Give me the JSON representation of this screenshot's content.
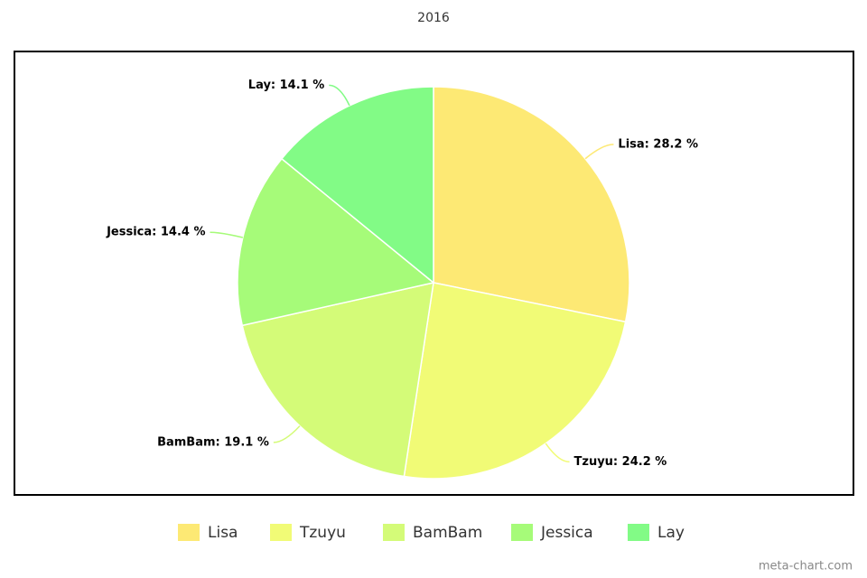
{
  "chart_data": {
    "type": "pie",
    "title": "2016",
    "categories": [
      "Lisa",
      "Tzuyu",
      "BamBam",
      "Jessica",
      "Lay"
    ],
    "values": [
      28.2,
      24.2,
      19.1,
      14.4,
      14.1
    ],
    "value_labels": [
      "Lisa: 28.2 %",
      "Tzuyu: 24.2 %",
      "BamBam: 19.1 %",
      "Jessica: 14.4 %",
      "Lay: 14.1 %"
    ],
    "colors": [
      "#fde974",
      "#f1fb76",
      "#d4fb78",
      "#a6fb79",
      "#82fb86"
    ],
    "legend": "bottom",
    "credit": "meta-chart.com"
  }
}
